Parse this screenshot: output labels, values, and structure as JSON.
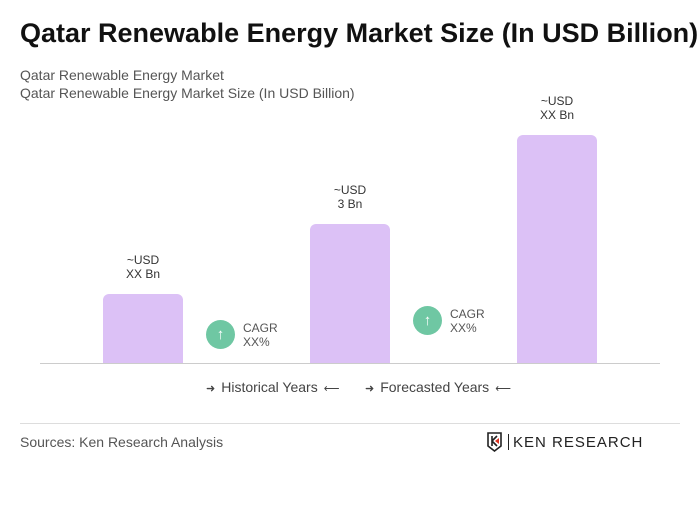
{
  "title": "Qatar Renewable Energy Market Size (In USD Billion)",
  "subtitle1": "Qatar Renewable Energy Market",
  "subtitle2": "Qatar Renewable Energy Market Size (In USD Billion)",
  "chart_data": {
    "type": "bar",
    "values": [
      1.5,
      3,
      4.9
    ],
    "labels": [
      {
        "l1": "~USD",
        "l2": "XX Bn"
      },
      {
        "l1": "~USD",
        "l2": "3 Bn"
      },
      {
        "l1": "~USD",
        "l2": "XX Bn"
      }
    ],
    "bar_color": "#dcc1f6",
    "cagr": [
      {
        "l1": "CAGR",
        "l2": "XX%"
      },
      {
        "l1": "CAGR",
        "l2": "XX%"
      }
    ],
    "cagr_color": "#6fc7a3",
    "legend": [
      "Historical Years",
      "Forecasted Years"
    ],
    "grid": false
  },
  "sources": "Sources: Ken Research Analysis",
  "logo": "KEN RESEARCH"
}
